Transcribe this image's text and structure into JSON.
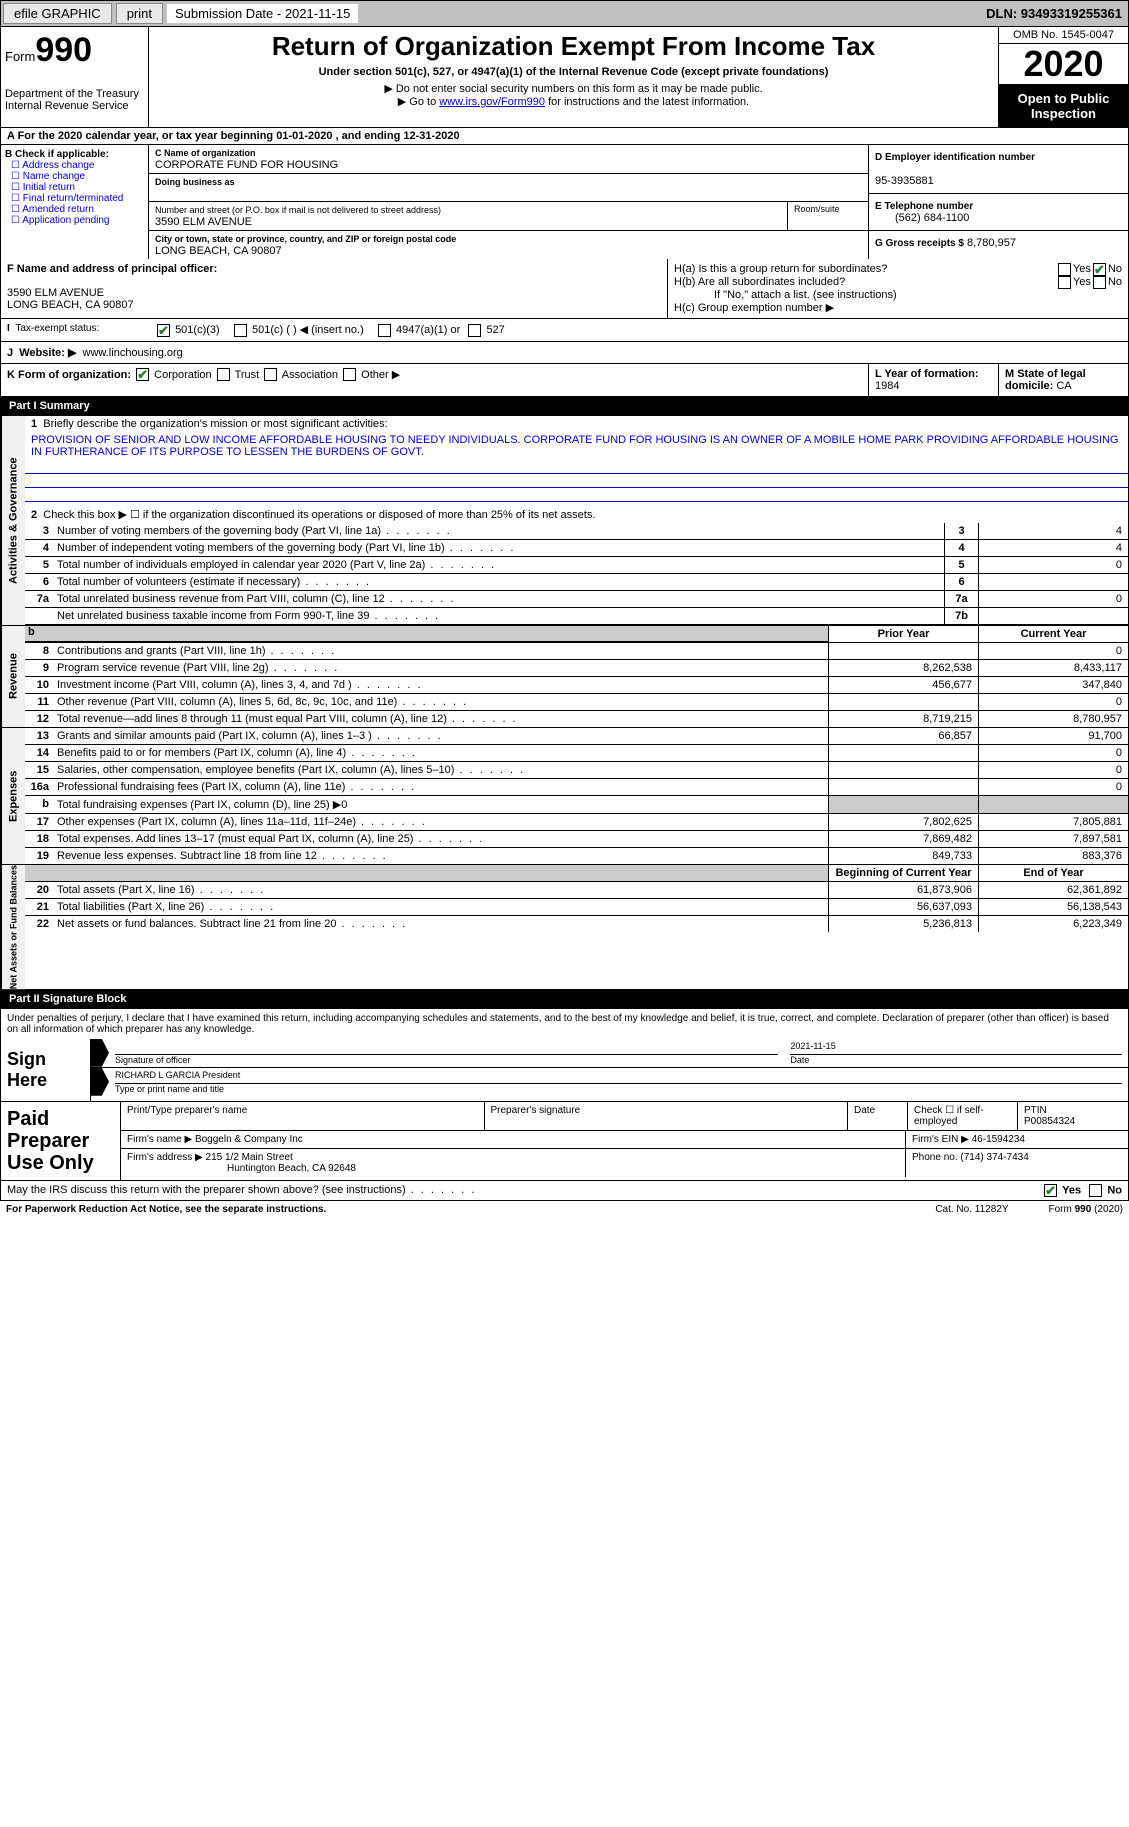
{
  "topbar": {
    "efile": "efile GRAPHIC",
    "print": "print",
    "submission_label": "Submission Date - 2021-11-15",
    "dln": "DLN: 93493319255361"
  },
  "header": {
    "form_prefix": "Form",
    "form_number": "990",
    "dept": "Department of the Treasury\nInternal Revenue Service",
    "title": "Return of Organization Exempt From Income Tax",
    "subtitle": "Under section 501(c), 527, or 4947(a)(1) of the Internal Revenue Code (except private foundations)",
    "note1": "Do not enter social security numbers on this form as it may be made public.",
    "note2_pre": "Go to ",
    "note2_link": "www.irs.gov/Form990",
    "note2_post": " for instructions and the latest information.",
    "omb": "OMB No. 1545-0047",
    "year": "2020",
    "inspect": "Open to Public Inspection"
  },
  "period": {
    "text": "A For the 2020 calendar year, or tax year beginning 01-01-2020   , and ending 12-31-2020"
  },
  "boxB": {
    "label": "B Check if applicable:",
    "options": [
      "Address change",
      "Name change",
      "Initial return",
      "Final return/terminated",
      "Amended return",
      "Application pending"
    ]
  },
  "boxC": {
    "name_label": "C Name of organization",
    "name": "CORPORATE FUND FOR HOUSING",
    "dba_label": "Doing business as",
    "addr_label": "Number and street (or P.O. box if mail is not delivered to street address)",
    "room_label": "Room/suite",
    "street": "3590 ELM AVENUE",
    "city_label": "City or town, state or province, country, and ZIP or foreign postal code",
    "city": "LONG BEACH, CA  90807"
  },
  "boxD": {
    "label": "D Employer identification number",
    "value": "95-3935881"
  },
  "boxE": {
    "label": "E Telephone number",
    "value": "(562) 684-1100"
  },
  "boxG": {
    "label": "G Gross receipts $",
    "value": "8,780,957"
  },
  "boxF": {
    "label": "F Name and address of principal officer:",
    "addr1": "3590 ELM AVENUE",
    "addr2": "LONG BEACH, CA  90807"
  },
  "boxH": {
    "ha": "H(a)  Is this a group return for subordinates?",
    "hb": "H(b)  Are all subordinates included?",
    "hb_note": "If \"No,\" attach a list. (see instructions)",
    "hc": "H(c)  Group exemption number ▶",
    "yes": "Yes",
    "no": "No"
  },
  "boxI": {
    "label": "Tax-exempt status:",
    "opts": [
      "501(c)(3)",
      "501(c) (  ) ◀ (insert no.)",
      "4947(a)(1) or",
      "527"
    ]
  },
  "boxJ": {
    "label": "Website: ▶",
    "value": "www.linchousing.org"
  },
  "boxK": {
    "label": "K Form of organization:",
    "opts": [
      "Corporation",
      "Trust",
      "Association",
      "Other ▶"
    ]
  },
  "boxL": {
    "label": "L Year of formation:",
    "value": "1984"
  },
  "boxM": {
    "label": "M State of legal domicile:",
    "value": "CA"
  },
  "part1": {
    "header": "Part I      Summary",
    "line1_label": "Briefly describe the organization's mission or most significant activities:",
    "mission": "PROVISION OF SENIOR AND LOW INCOME AFFORDABLE HOUSING TO NEEDY INDIVIDUALS. CORPORATE FUND FOR HOUSING IS AN OWNER OF A MOBILE HOME PARK PROVIDING AFFORDABLE HOUSING IN FURTHERANCE OF ITS PURPOSE TO LESSEN THE BURDENS OF GOVT.",
    "line2": "Check this box ▶ ☐  if the organization discontinued its operations or disposed of more than 25% of its net assets.",
    "gov_lines": [
      {
        "n": "3",
        "desc": "Number of voting members of the governing body (Part VI, line 1a)",
        "box": "3",
        "val": "4"
      },
      {
        "n": "4",
        "desc": "Number of independent voting members of the governing body (Part VI, line 1b)",
        "box": "4",
        "val": "4"
      },
      {
        "n": "5",
        "desc": "Total number of individuals employed in calendar year 2020 (Part V, line 2a)",
        "box": "5",
        "val": "0"
      },
      {
        "n": "6",
        "desc": "Total number of volunteers (estimate if necessary)",
        "box": "6",
        "val": ""
      },
      {
        "n": "7a",
        "desc": "Total unrelated business revenue from Part VIII, column (C), line 12",
        "box": "7a",
        "val": "0"
      },
      {
        "n": "",
        "desc": "Net unrelated business taxable income from Form 990-T, line 39",
        "box": "7b",
        "val": ""
      }
    ],
    "col_prior": "Prior Year",
    "col_current": "Current Year",
    "rev_lines": [
      {
        "n": "8",
        "desc": "Contributions and grants (Part VIII, line 1h)",
        "prior": "",
        "cur": "0"
      },
      {
        "n": "9",
        "desc": "Program service revenue (Part VIII, line 2g)",
        "prior": "8,262,538",
        "cur": "8,433,117"
      },
      {
        "n": "10",
        "desc": "Investment income (Part VIII, column (A), lines 3, 4, and 7d )",
        "prior": "456,677",
        "cur": "347,840"
      },
      {
        "n": "11",
        "desc": "Other revenue (Part VIII, column (A), lines 5, 6d, 8c, 9c, 10c, and 11e)",
        "prior": "",
        "cur": "0"
      },
      {
        "n": "12",
        "desc": "Total revenue—add lines 8 through 11 (must equal Part VIII, column (A), line 12)",
        "prior": "8,719,215",
        "cur": "8,780,957"
      }
    ],
    "exp_lines": [
      {
        "n": "13",
        "desc": "Grants and similar amounts paid (Part IX, column (A), lines 1–3 )",
        "prior": "66,857",
        "cur": "91,700"
      },
      {
        "n": "14",
        "desc": "Benefits paid to or for members (Part IX, column (A), line 4)",
        "prior": "",
        "cur": "0"
      },
      {
        "n": "15",
        "desc": "Salaries, other compensation, employee benefits (Part IX, column (A), lines 5–10)",
        "prior": "",
        "cur": "0"
      },
      {
        "n": "16a",
        "desc": "Professional fundraising fees (Part IX, column (A), line 11e)",
        "prior": "",
        "cur": "0"
      }
    ],
    "line16b": {
      "n": "b",
      "desc": "Total fundraising expenses (Part IX, column (D), line 25) ▶0"
    },
    "exp_lines2": [
      {
        "n": "17",
        "desc": "Other expenses (Part IX, column (A), lines 11a–11d, 11f–24e)",
        "prior": "7,802,625",
        "cur": "7,805,881"
      },
      {
        "n": "18",
        "desc": "Total expenses. Add lines 13–17 (must equal Part IX, column (A), line 25)",
        "prior": "7,869,482",
        "cur": "7,897,581"
      },
      {
        "n": "19",
        "desc": "Revenue less expenses. Subtract line 18 from line 12",
        "prior": "849,733",
        "cur": "883,376"
      }
    ],
    "col_begin": "Beginning of Current Year",
    "col_end": "End of Year",
    "net_lines": [
      {
        "n": "20",
        "desc": "Total assets (Part X, line 16)",
        "prior": "61,873,906",
        "cur": "62,361,892"
      },
      {
        "n": "21",
        "desc": "Total liabilities (Part X, line 26)",
        "prior": "56,637,093",
        "cur": "56,138,543"
      },
      {
        "n": "22",
        "desc": "Net assets or fund balances. Subtract line 21 from line 20",
        "prior": "5,236,813",
        "cur": "6,223,349"
      }
    ],
    "vtabs": {
      "gov": "Activities & Governance",
      "rev": "Revenue",
      "exp": "Expenses",
      "net": "Net Assets or Fund Balances"
    }
  },
  "part2": {
    "header": "Part II      Signature Block",
    "declaration": "Under penalties of perjury, I declare that I have examined this return, including accompanying schedules and statements, and to the best of my knowledge and belief, it is true, correct, and complete. Declaration of preparer (other than officer) is based on all information of which preparer has any knowledge."
  },
  "sign": {
    "label": "Sign Here",
    "sig_label": "Signature of officer",
    "date_label": "Date",
    "date_val": "2021-11-15",
    "name": "RICHARD L GARCIA  President",
    "name_label": "Type or print name and title"
  },
  "preparer": {
    "label": "Paid Preparer Use Only",
    "r1": {
      "c1_label": "Print/Type preparer's name",
      "c2_label": "Preparer's signature",
      "c3_label": "Date",
      "c4_label": "Check ☐ if self-employed",
      "c5_label": "PTIN",
      "c5_val": "P00854324"
    },
    "r2": {
      "firm_label": "Firm's name     ▶",
      "firm_val": "Boggeln & Company Inc",
      "ein_label": "Firm's EIN ▶",
      "ein_val": "46-1594234"
    },
    "r3": {
      "addr_label": "Firm's address ▶",
      "addr_val1": "215 1/2 Main Street",
      "addr_val2": "Huntington Beach, CA  92648",
      "phone_label": "Phone no.",
      "phone_val": "(714) 374-7434"
    }
  },
  "discuss": {
    "q": "May the IRS discuss this return with the preparer shown above? (see instructions)",
    "yes": "Yes",
    "no": "No"
  },
  "footer": {
    "left": "For Paperwork Reduction Act Notice, see the separate instructions.",
    "mid": "Cat. No. 11282Y",
    "right_pre": "Form ",
    "right_bold": "990",
    "right_post": " (2020)"
  }
}
